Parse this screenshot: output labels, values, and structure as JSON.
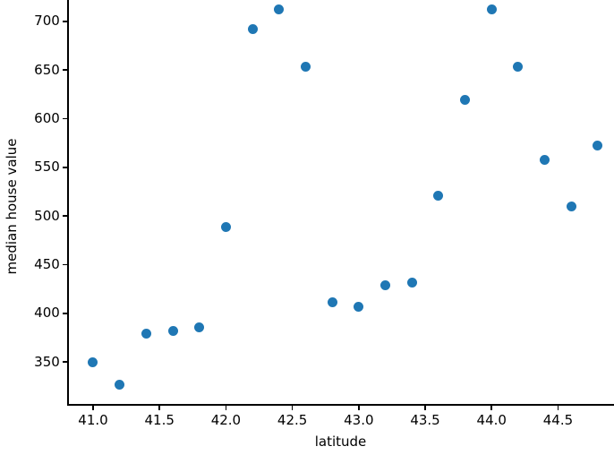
{
  "figure": {
    "background": "#ffffff",
    "spine_color": "#000000",
    "text_color": "#000000"
  },
  "chart_data": {
    "type": "scatter",
    "xlabel": "latitude",
    "ylabel": "median house value",
    "marker": "circle",
    "marker_color": "#1f77b4",
    "grid": false,
    "legend": "none",
    "x": [
      41.0,
      41.2,
      41.4,
      41.6,
      41.8,
      42.0,
      42.2,
      42.4,
      42.6,
      42.8,
      43.0,
      43.2,
      43.4,
      43.6,
      43.8,
      44.0,
      44.2,
      44.4,
      44.6,
      44.8
    ],
    "y": [
      350,
      327,
      379,
      382,
      386,
      489,
      692,
      712,
      653,
      411,
      407,
      429,
      432,
      521,
      619,
      712,
      653,
      558,
      510,
      572
    ],
    "xlim": [
      40.81,
      44.92
    ],
    "ylim": [
      306,
      722
    ],
    "xticks": {
      "values": [
        41.0,
        41.5,
        42.0,
        42.5,
        43.0,
        43.5,
        44.0,
        44.5
      ],
      "labels": [
        "41.0",
        "41.5",
        "42.0",
        "42.5",
        "43.0",
        "43.5",
        "44.0",
        "44.5"
      ]
    },
    "yticks": {
      "values": [
        350,
        400,
        450,
        500,
        550,
        600,
        650,
        700
      ],
      "labels": [
        "350",
        "400",
        "450",
        "500",
        "550",
        "600",
        "650",
        "700"
      ]
    }
  }
}
